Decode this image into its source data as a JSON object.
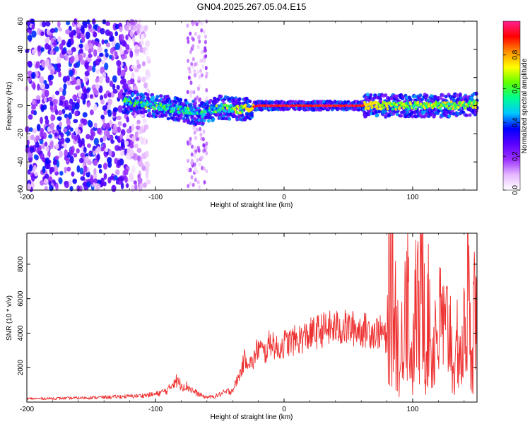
{
  "title": "GN04.2025.267.05.04.E15",
  "chart_data": [
    {
      "type": "heatmap",
      "title": "",
      "xlabel": "Height of straight line (km)",
      "ylabel": "Frequency (Hz)",
      "xlim": [
        -200,
        150
      ],
      "ylim": [
        -60,
        60
      ],
      "xticks": [
        -200,
        -100,
        0,
        100
      ],
      "yticks": [
        -60,
        -40,
        -20,
        0,
        20,
        40,
        60
      ],
      "colorbar": {
        "label": "Normalized spectral amplitude",
        "range": [
          0,
          1
        ],
        "ticks": [
          "0.0",
          "0.2",
          "0.4",
          "0.6",
          "0.8"
        ],
        "colors": [
          "#ffffff",
          "#e6b8ff",
          "#9b30ff",
          "#5a00ff",
          "#0000ff",
          "#00c8ff",
          "#00ff90",
          "#60ff00",
          "#ffff00",
          "#ff9000",
          "#ff0000",
          "#ff2090"
        ]
      },
      "features": [
        {
          "name": "noise",
          "x_range": [
            -200,
            -105
          ],
          "y_range": [
            -60,
            60
          ],
          "level": 0.25
        },
        {
          "name": "noise-stripe",
          "x_range": [
            -75,
            -60
          ],
          "y_range": [
            -60,
            60
          ],
          "level": 0.15
        },
        {
          "name": "trace",
          "x": [
            -125,
            -100,
            -80,
            -65,
            -50,
            -35,
            -20,
            0,
            50,
            75,
            100,
            125,
            150
          ],
          "y": [
            3,
            0,
            -3,
            -6,
            -1,
            -3,
            0,
            0,
            0,
            0,
            0,
            0,
            1
          ],
          "level": [
            0.35,
            0.4,
            0.35,
            0.3,
            0.4,
            0.5,
            0.9,
            1.0,
            1.0,
            0.6,
            0.45,
            0.5,
            0.5
          ]
        }
      ]
    },
    {
      "type": "line",
      "title": "",
      "xlabel": "Height of straight line (km)",
      "ylabel": "SNR (10 * v/v)",
      "xlim": [
        -200,
        150
      ],
      "ylim": [
        0,
        9800
      ],
      "xticks": [
        -200,
        -100,
        0,
        100
      ],
      "yticks": [
        2000,
        4000,
        6000,
        8000
      ],
      "color": "#ee3030",
      "series": [
        {
          "name": "SNR",
          "x": [
            -200,
            -170,
            -140,
            -115,
            -100,
            -90,
            -85,
            -80,
            -75,
            -70,
            -62,
            -55,
            -48,
            -40,
            -35,
            -30,
            -25,
            -20,
            -15,
            -10,
            -5,
            0,
            10,
            20,
            30,
            40,
            50,
            60,
            70,
            78,
            80,
            82,
            85,
            88,
            90,
            93,
            95,
            98,
            100,
            103,
            105,
            108,
            110,
            113,
            115,
            118,
            120,
            123,
            125,
            128,
            130,
            133,
            135,
            138,
            140,
            143,
            145,
            148,
            150
          ],
          "y": [
            200,
            220,
            280,
            350,
            450,
            700,
            1300,
            1000,
            900,
            600,
            300,
            300,
            500,
            700,
            1500,
            2600,
            2200,
            3200,
            2800,
            3600,
            3000,
            3400,
            3600,
            3900,
            4200,
            4300,
            4300,
            4200,
            4100,
            4000,
            3000,
            8000,
            6000,
            4500,
            1200,
            5500,
            8500,
            3500,
            2000,
            6500,
            4000,
            9500,
            3000,
            5500,
            2500,
            4500,
            4000,
            5000,
            3500,
            4800,
            3600,
            1200,
            4200,
            2000,
            4000,
            6500,
            3000,
            5500,
            4000
          ]
        }
      ]
    }
  ]
}
